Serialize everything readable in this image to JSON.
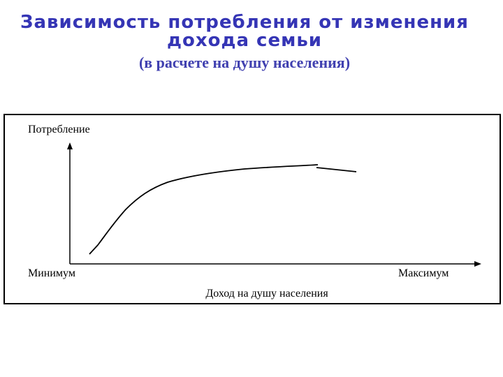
{
  "header": {
    "title_lines": [
      "Зависимость потребления от изменения",
      "дохода семьи"
    ],
    "subtitle": "(в расчете на душу населения)"
  },
  "diagram": {
    "y_axis_label": "Потребление",
    "x_min_label": "Минимум",
    "x_max_label": "Максимум",
    "x_axis_label": "Доход на душу населения"
  }
}
